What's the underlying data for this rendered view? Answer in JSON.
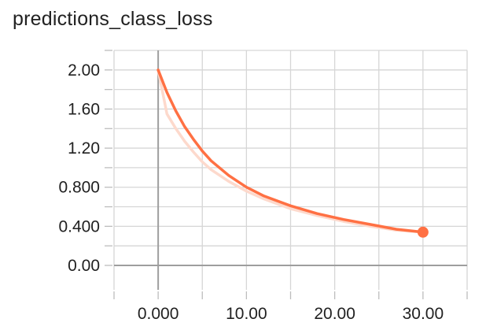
{
  "chart_data": {
    "type": "line",
    "title": "predictions_class_loss",
    "xlabel": "",
    "ylabel": "",
    "xlim": [
      -5,
      35
    ],
    "ylim": [
      -0.25,
      2.2
    ],
    "x_ticks": [
      0,
      10,
      20,
      30
    ],
    "x_tick_labels": [
      "0.000",
      "10.00",
      "20.00",
      "30.00"
    ],
    "y_ticks": [
      0,
      0.4,
      0.8,
      1.2,
      1.6,
      2.0
    ],
    "y_tick_labels": [
      "0.00",
      "0.400",
      "0.800",
      "1.20",
      "1.60",
      "2.00"
    ],
    "grid": true,
    "series": [
      {
        "role": "raw",
        "color": "#fdd9cc",
        "x": [
          0,
          1,
          2,
          3,
          4,
          5,
          6,
          8,
          10,
          12,
          15,
          18,
          21,
          24,
          27,
          30
        ],
        "values": [
          2.0,
          1.55,
          1.4,
          1.27,
          1.16,
          1.06,
          0.98,
          0.86,
          0.76,
          0.68,
          0.58,
          0.51,
          0.45,
          0.4,
          0.36,
          0.34
        ]
      },
      {
        "role": "smoothed",
        "color": "#ff7043",
        "x": [
          0,
          1,
          2,
          3,
          4,
          5,
          6,
          8,
          10,
          12,
          15,
          18,
          21,
          24,
          27,
          30
        ],
        "values": [
          2.0,
          1.77,
          1.58,
          1.42,
          1.29,
          1.17,
          1.07,
          0.92,
          0.8,
          0.71,
          0.61,
          0.53,
          0.47,
          0.42,
          0.37,
          0.34
        ]
      }
    ],
    "marker": {
      "x": 30,
      "value": 0.34,
      "color": "#ff7043"
    }
  }
}
